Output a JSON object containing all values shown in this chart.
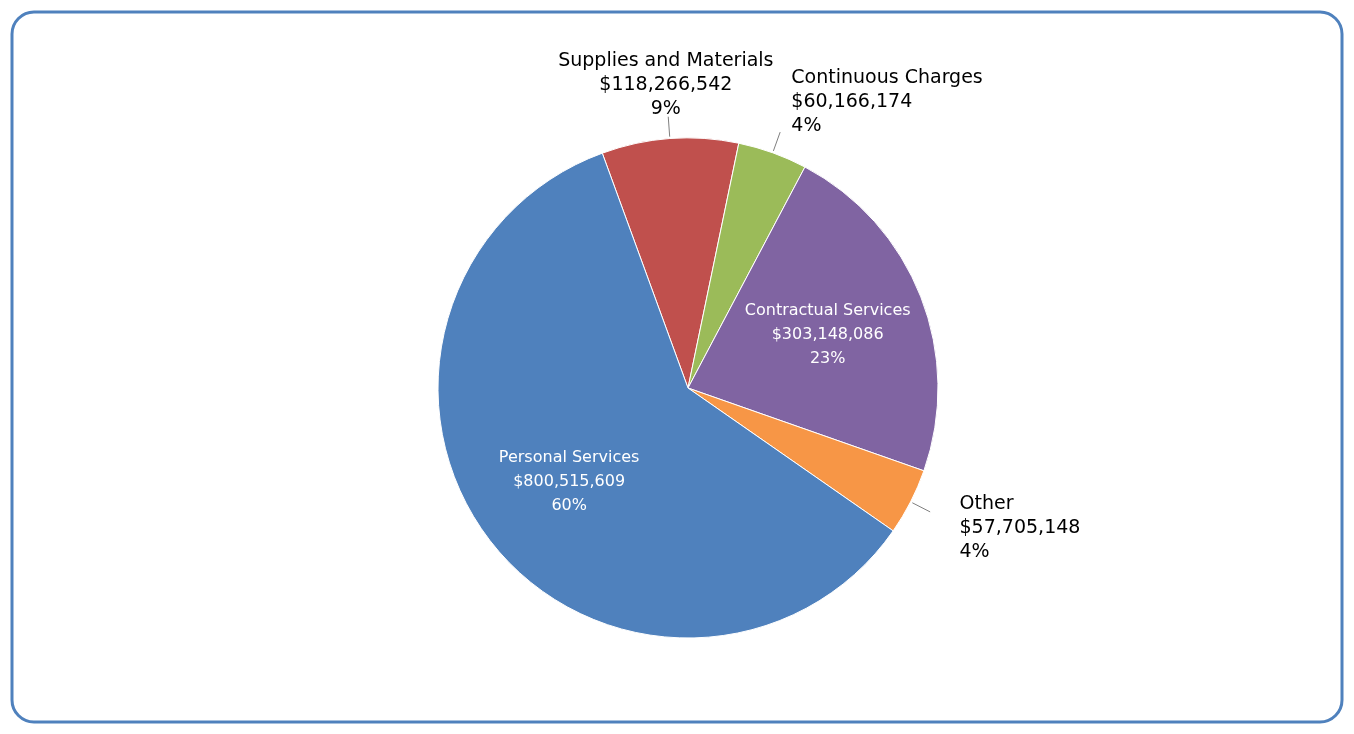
{
  "chart_data": {
    "type": "pie",
    "categories": [
      "Supplies and Materials",
      "Continuous Charges",
      "Contractual Services",
      "Other",
      "Personal Services"
    ],
    "values": [
      118266542,
      60166174,
      303148086,
      57705148,
      800515609
    ],
    "colors": [
      "#c0504d",
      "#9bbb59",
      "#8064a2",
      "#f79646",
      "#4f81bd"
    ],
    "value_labels": [
      "$118,266,542\n9%",
      "$60,166,174\n4%",
      "$303,148,086\n23%",
      "$57,705,148\n4%",
      "$800,515,609\n60%"
    ]
  }
}
